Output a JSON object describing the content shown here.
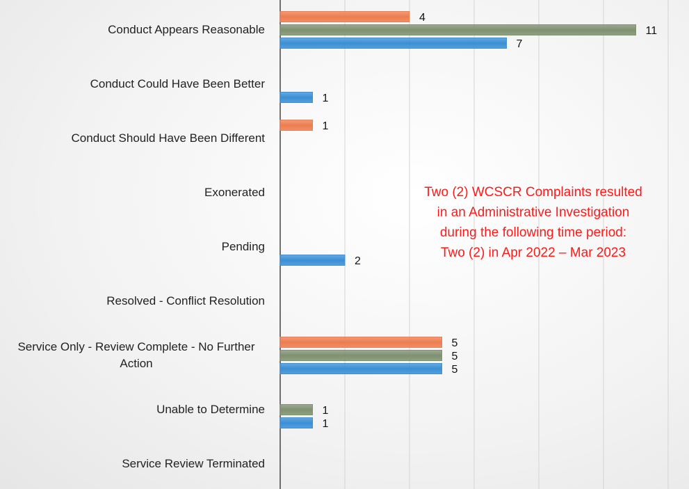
{
  "chart_data": {
    "type": "hbar",
    "categories": [
      "Conduct Appears Reasonable",
      "Conduct Could Have Been Better",
      "Conduct Should Have Been Different",
      "Exonerated",
      "Pending",
      "Resolved - Conflict Resolution",
      "Service Only - Review Complete - No Further Action",
      "Unable to Determine",
      "Service Review Terminated"
    ],
    "series": [
      {
        "color": "#ED7D4F",
        "values": [
          4,
          null,
          1,
          null,
          null,
          null,
          5,
          null,
          null
        ]
      },
      {
        "color": "#7F9170",
        "values": [
          11,
          null,
          null,
          null,
          null,
          null,
          5,
          1,
          null
        ]
      },
      {
        "color": "#3A8FD6",
        "values": [
          7,
          1,
          null,
          null,
          2,
          null,
          5,
          1,
          null
        ]
      }
    ],
    "xlim": [
      0,
      12
    ],
    "xticks": [
      0,
      2,
      4,
      6,
      8,
      10,
      12
    ],
    "grid": true,
    "annotation": [
      "Two (2) WCSCR Complaints resulted",
      "in an Administrative Investigation",
      "during the following time period:",
      "Two (2) in Apr 2022 – Mar 2023"
    ],
    "annotation_color": "#FF1A1A"
  }
}
